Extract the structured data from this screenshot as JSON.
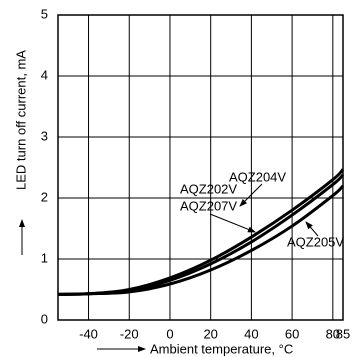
{
  "chart_data": {
    "type": "line",
    "x_label": "Ambient temperature, °C",
    "y_label": "LED turn off current, mA",
    "x": [
      -55,
      -40,
      -20,
      0,
      20,
      40,
      60,
      80,
      85
    ],
    "series": [
      {
        "names": [
          "AQZ204V"
        ],
        "color": "#000000",
        "values": [
          0.42,
          0.43,
          0.5,
          0.69,
          0.98,
          1.36,
          1.8,
          2.3,
          2.47
        ]
      },
      {
        "names": [
          "AQZ202V",
          "AQZ207V"
        ],
        "color": "#000000",
        "values": [
          0.42,
          0.43,
          0.48,
          0.65,
          0.92,
          1.28,
          1.72,
          2.22,
          2.38
        ]
      },
      {
        "names": [
          "AQZ205V"
        ],
        "color": "#000000",
        "values": [
          0.42,
          0.43,
          0.46,
          0.59,
          0.82,
          1.14,
          1.54,
          2.04,
          2.2
        ]
      }
    ],
    "xlim": [
      -55,
      85
    ],
    "xticks": [
      -40,
      -20,
      0,
      20,
      40,
      60,
      80,
      85
    ],
    "ylim": [
      0,
      5
    ],
    "yticks": [
      0,
      1,
      2,
      3,
      4,
      5
    ],
    "grid": true
  }
}
